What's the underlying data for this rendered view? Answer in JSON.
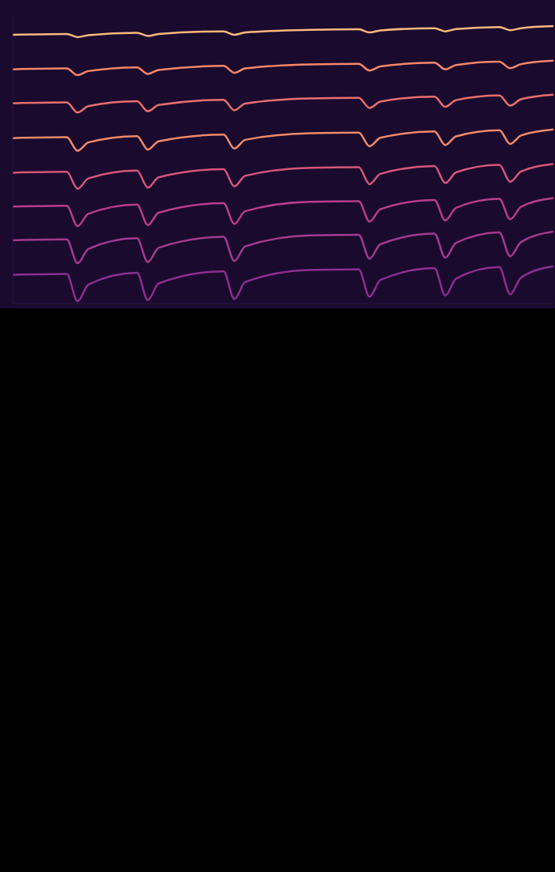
{
  "chart_data": {
    "type": "line",
    "x": [
      0,
      10,
      12,
      14,
      23,
      25,
      27,
      39,
      41,
      43,
      55,
      64,
      66,
      68,
      78,
      80,
      82,
      90,
      92,
      94,
      100
    ],
    "xlim": [
      0,
      100
    ],
    "ylim": [
      0,
      100
    ],
    "grid": false,
    "tick_labels": false,
    "series": [
      {
        "color": "#fcb97d",
        "values": [
          6.6,
          6.3,
          7.4,
          6.7,
          5.9,
          7.0,
          6.3,
          5.4,
          6.6,
          5.8,
          4.9,
          4.7,
          5.8,
          5.1,
          4.3,
          5.4,
          4.6,
          3.9,
          5.0,
          4.3,
          3.6
        ]
      },
      {
        "color": "#f7876a",
        "values": [
          18.6,
          18.3,
          20.6,
          19.2,
          17.9,
          20.2,
          18.8,
          17.4,
          19.8,
          18.3,
          16.9,
          16.7,
          19.0,
          17.6,
          16.3,
          18.6,
          17.1,
          15.9,
          18.2,
          16.8,
          15.6
        ]
      },
      {
        "color": "#e8706e",
        "values": [
          30.4,
          30.1,
          33.6,
          31.4,
          29.7,
          33.2,
          31.0,
          29.2,
          32.8,
          30.5,
          28.7,
          28.5,
          32.0,
          29.8,
          28.1,
          31.6,
          29.3,
          27.7,
          31.2,
          29.0,
          27.4
        ]
      },
      {
        "color": "#f08a6a",
        "values": [
          42.5,
          42.2,
          46.9,
          44.0,
          41.8,
          46.5,
          43.6,
          41.3,
          46.1,
          43.1,
          40.8,
          40.6,
          45.3,
          42.4,
          40.2,
          44.9,
          41.9,
          39.8,
          44.5,
          41.6,
          39.5
        ]
      },
      {
        "color": "#d5577a",
        "values": [
          54.5,
          54.2,
          60.1,
          56.5,
          53.8,
          59.7,
          56.1,
          53.3,
          59.3,
          55.6,
          52.8,
          52.6,
          58.5,
          54.9,
          52.2,
          58.1,
          54.4,
          51.8,
          57.7,
          54.1,
          51.5
        ]
      },
      {
        "color": "#b83d8a",
        "values": [
          66.3,
          66.0,
          73.1,
          68.8,
          65.6,
          72.7,
          68.4,
          65.1,
          72.3,
          67.9,
          64.6,
          64.4,
          71.5,
          67.2,
          64.0,
          71.1,
          66.7,
          63.6,
          70.7,
          66.4,
          63.3
        ]
      },
      {
        "color": "#a33a8e",
        "values": [
          78.0,
          77.7,
          86.0,
          81.0,
          77.3,
          85.6,
          80.6,
          76.8,
          85.2,
          80.1,
          76.3,
          76.1,
          84.4,
          79.4,
          75.7,
          84.0,
          78.9,
          75.3,
          83.6,
          78.6,
          75.0
        ]
      },
      {
        "color": "#8c2f8f",
        "values": [
          90.0,
          89.7,
          99.2,
          93.4,
          89.3,
          98.8,
          93.0,
          88.8,
          98.4,
          92.5,
          88.3,
          88.1,
          97.6,
          91.8,
          87.7,
          97.2,
          91.3,
          87.3,
          96.8,
          91.0,
          87.0
        ]
      }
    ]
  }
}
